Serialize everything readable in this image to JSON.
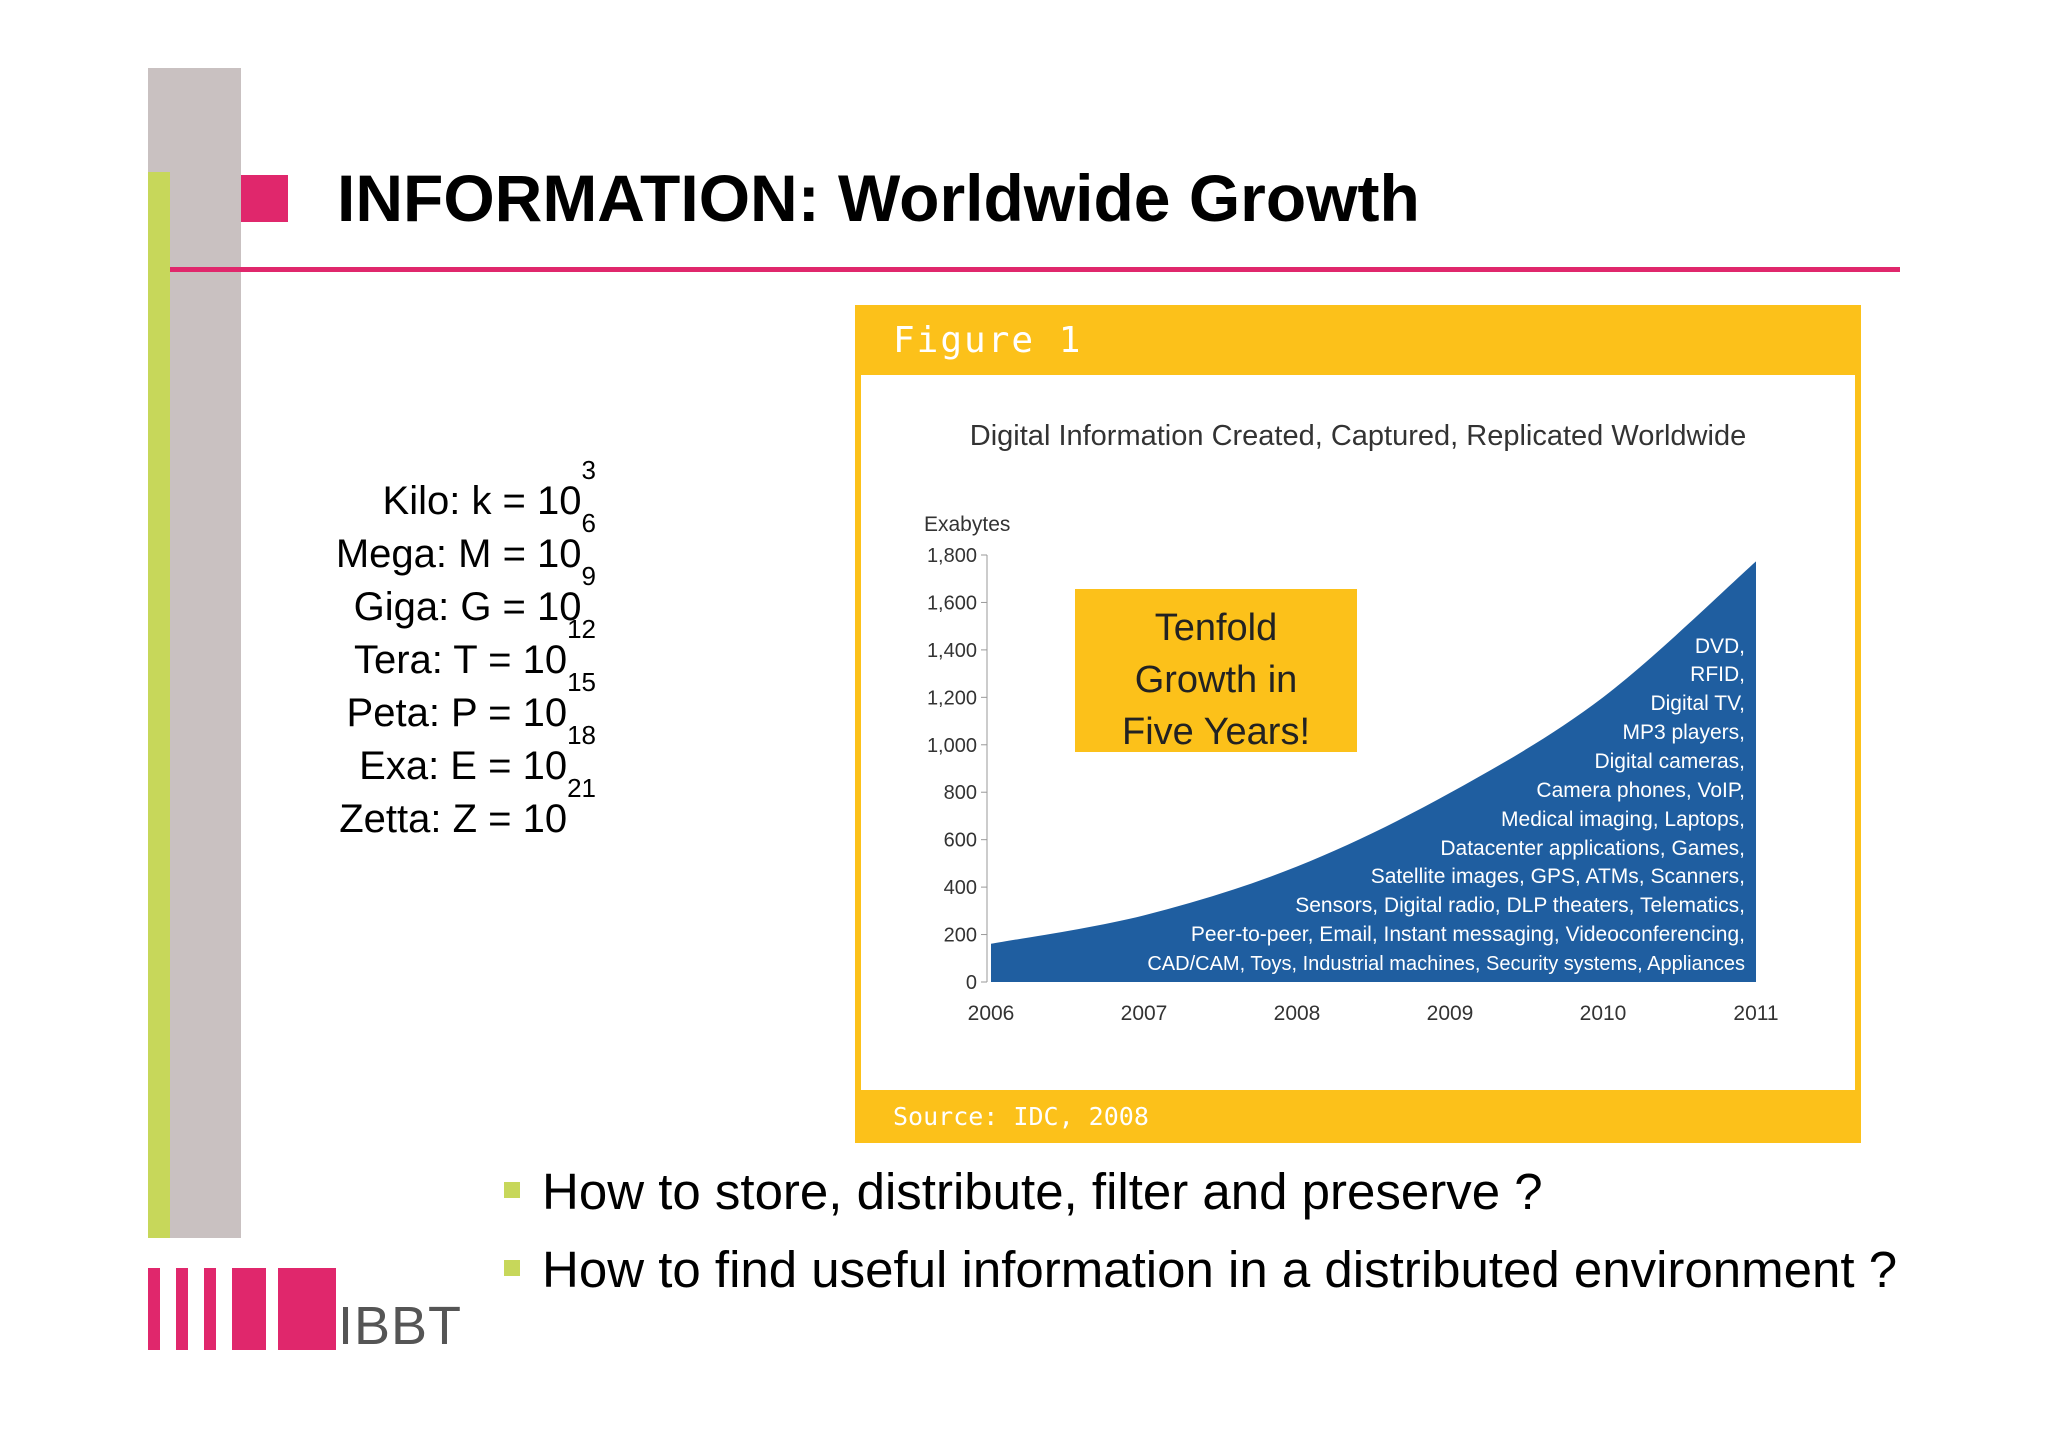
{
  "slide": {
    "title": "INFORMATION: Worldwide Growth",
    "units": [
      {
        "text": "Kilo: k = 10",
        "exp": "3"
      },
      {
        "text": "Mega: M = 10",
        "exp": "6"
      },
      {
        "text": "Giga: G = 10",
        "exp": "9"
      },
      {
        "text": "Tera: T = 10",
        "exp": "12"
      },
      {
        "text": "Peta: P = 10",
        "exp": "15"
      },
      {
        "text": "Exa: E = 10",
        "exp": "18"
      },
      {
        "text": "Zetta: Z = 10",
        "exp": "21"
      }
    ],
    "bullets": [
      "How to store, distribute, filter and preserve ?",
      "How to find useful information in a distributed environment ?"
    ],
    "logo_text": "IBBT",
    "colors": {
      "accent": "#e0276c",
      "green": "#c7d75a",
      "gray": "#c9c1c1",
      "figure_yellow": "#fcc11a",
      "area_blue": "#1f5ea0"
    }
  },
  "figure": {
    "label": "Figure 1",
    "source": "Source: IDC, 2008"
  },
  "chart_data": {
    "type": "area",
    "title": "Digital Information Created, Captured, Replicated Worldwide",
    "ylabel": "Exabytes",
    "xlabel": "",
    "x": [
      "2006",
      "2007",
      "2008",
      "2009",
      "2010",
      "2011"
    ],
    "values": [
      161,
      281,
      487,
      797,
      1200,
      1773
    ],
    "ylim": [
      0,
      1800
    ],
    "yticks": [
      0,
      200,
      400,
      600,
      800,
      1000,
      1200,
      1400,
      1600,
      1800
    ],
    "ytick_labels": [
      "0",
      "200",
      "400",
      "600",
      "800",
      "1,000",
      "1,200",
      "1,400",
      "1,600",
      "1,800"
    ],
    "grid": false,
    "callout": [
      "Tenfold",
      "Growth in",
      "Five Years!"
    ],
    "annotations": [
      "DVD,",
      "RFID,",
      "Digital TV,",
      "MP3 players,",
      "Digital cameras,",
      "Camera phones, VoIP,",
      "Medical imaging, Laptops,",
      "Datacenter applications, Games,",
      "Satellite images, GPS, ATMs, Scanners,",
      "Sensors, Digital radio, DLP theaters, Telematics,",
      "Peer-to-peer, Email, Instant messaging, Videoconferencing,",
      "CAD/CAM, Toys, Industrial machines, Security systems, Appliances"
    ]
  }
}
